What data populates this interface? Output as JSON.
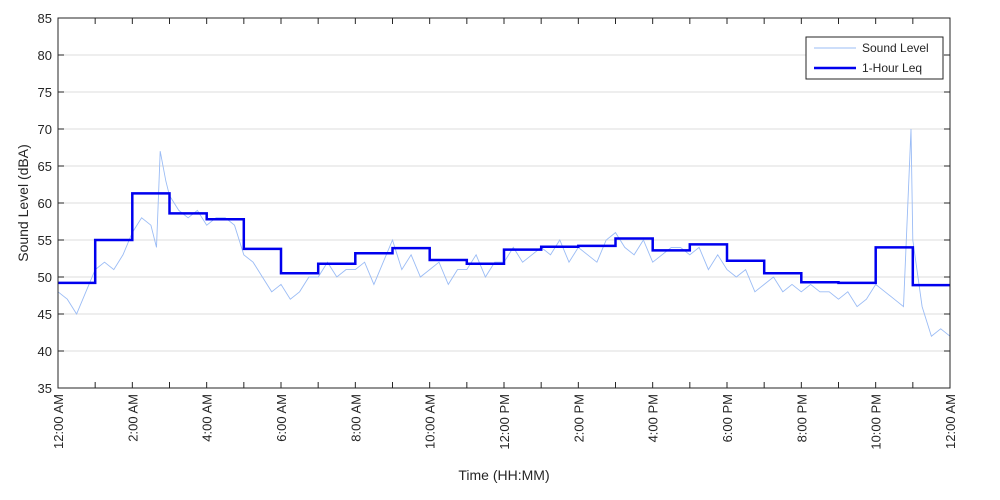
{
  "chart_data": {
    "type": "line",
    "title": "",
    "xlabel": "Time (HH:MM)",
    "ylabel": "Sound Level (dBA)",
    "xlim_hours": [
      0,
      24
    ],
    "ylim": [
      35,
      85
    ],
    "y_ticks": [
      35,
      40,
      45,
      50,
      55,
      60,
      65,
      70,
      75,
      80,
      85
    ],
    "x_tick_labels": [
      "12:00 AM",
      "2:00 AM",
      "4:00 AM",
      "6:00 AM",
      "8:00 AM",
      "10:00 AM",
      "12:00 PM",
      "2:00 PM",
      "4:00 PM",
      "6:00 PM",
      "8:00 PM",
      "10:00 PM",
      "12:00 AM"
    ],
    "grid": "horizontal",
    "legend_position": "top-right",
    "series": [
      {
        "name": "Sound Level",
        "style": "thin-line",
        "color": "#9bbcf5",
        "x_hours": [
          0,
          0.25,
          0.5,
          0.75,
          1,
          1.25,
          1.5,
          1.75,
          2,
          2.25,
          2.5,
          2.65,
          2.75,
          2.9,
          3,
          3.25,
          3.5,
          3.75,
          4,
          4.25,
          4.5,
          4.75,
          5,
          5.25,
          5.5,
          5.75,
          6,
          6.25,
          6.5,
          6.75,
          7,
          7.25,
          7.5,
          7.75,
          8,
          8.25,
          8.5,
          8.75,
          9,
          9.25,
          9.5,
          9.75,
          10,
          10.25,
          10.5,
          10.75,
          11,
          11.25,
          11.5,
          11.75,
          12,
          12.25,
          12.5,
          12.75,
          13,
          13.25,
          13.5,
          13.75,
          14,
          14.25,
          14.5,
          14.75,
          15,
          15.25,
          15.5,
          15.75,
          16,
          16.25,
          16.5,
          16.75,
          17,
          17.25,
          17.5,
          17.75,
          18,
          18.25,
          18.5,
          18.75,
          19,
          19.25,
          19.5,
          19.75,
          20,
          20.25,
          20.5,
          20.75,
          21,
          21.25,
          21.5,
          21.75,
          22,
          22.25,
          22.5,
          22.75,
          22.95,
          23,
          23.25,
          23.5,
          23.75,
          24
        ],
        "values": [
          48,
          47,
          45,
          48,
          51,
          52,
          51,
          53,
          56,
          58,
          57,
          54,
          67,
          63,
          61,
          59,
          58,
          59,
          57,
          58,
          58,
          57,
          53,
          52,
          50,
          48,
          49,
          47,
          48,
          50,
          50,
          52,
          50,
          51,
          51,
          52,
          49,
          52,
          55,
          51,
          53,
          50,
          51,
          52,
          49,
          51,
          51,
          53,
          50,
          52,
          52,
          54,
          52,
          53,
          54,
          53,
          55,
          52,
          54,
          53,
          52,
          55,
          56,
          54,
          53,
          55,
          52,
          53,
          54,
          54,
          53,
          54,
          51,
          53,
          51,
          50,
          51,
          48,
          49,
          50,
          48,
          49,
          48,
          49,
          48,
          48,
          47,
          48,
          46,
          47,
          49,
          48,
          47,
          46,
          70,
          55,
          46,
          42,
          43,
          42
        ]
      },
      {
        "name": "1-Hour Leq",
        "style": "step",
        "color": "#0000ee",
        "x_hours": [
          0,
          1,
          2,
          3,
          4,
          5,
          6,
          7,
          8,
          9,
          10,
          11,
          12,
          13,
          14,
          15,
          16,
          17,
          18,
          19,
          20,
          21,
          22,
          23
        ],
        "values": [
          49.2,
          55.0,
          61.3,
          58.6,
          57.8,
          53.8,
          50.5,
          51.8,
          53.2,
          53.9,
          52.3,
          51.8,
          53.7,
          54.1,
          54.2,
          55.2,
          53.6,
          54.4,
          52.2,
          50.5,
          49.3,
          49.2,
          54.0,
          48.9
        ]
      }
    ]
  }
}
